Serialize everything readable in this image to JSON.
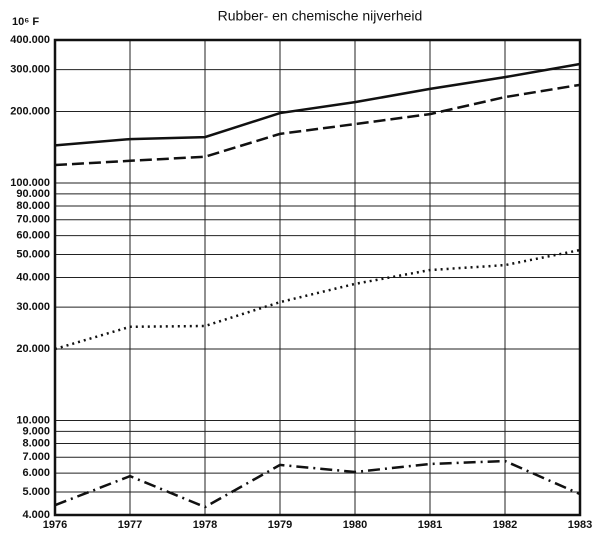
{
  "chart_data": {
    "type": "line",
    "title": "Rubber- en chemische nijverheid",
    "ylabel": "10⁶ F",
    "x": [
      1976,
      1977,
      1978,
      1979,
      1980,
      1981,
      1982,
      1983
    ],
    "xlim": [
      1976,
      1983
    ],
    "xticks": [
      1976,
      1977,
      1978,
      1979,
      1980,
      1981,
      1982,
      1983
    ],
    "log_y": true,
    "grid": true,
    "ylim": [
      4000,
      400000
    ],
    "yticks": [
      {
        "value": 400000,
        "label": "400.000"
      },
      {
        "value": 300000,
        "label": "300.000"
      },
      {
        "value": 200000,
        "label": "200.000"
      },
      {
        "value": 100000,
        "label": "100.000"
      },
      {
        "value": 90000,
        "label": "90.000"
      },
      {
        "value": 80000,
        "label": "80.000"
      },
      {
        "value": 70000,
        "label": "70.000"
      },
      {
        "value": 60000,
        "label": "60.000"
      },
      {
        "value": 50000,
        "label": "50.000"
      },
      {
        "value": 40000,
        "label": "40.000"
      },
      {
        "value": 30000,
        "label": "30.000"
      },
      {
        "value": 20000,
        "label": "20.000"
      },
      {
        "value": 10000,
        "label": "10.000"
      },
      {
        "value": 9000,
        "label": "9.000"
      },
      {
        "value": 8000,
        "label": "8.000"
      },
      {
        "value": 7000,
        "label": "7.000"
      },
      {
        "value": 6000,
        "label": "6.000"
      },
      {
        "value": 5000,
        "label": "5.000"
      },
      {
        "value": 4000,
        "label": "4.000"
      }
    ],
    "series": [
      {
        "color": "#111111",
        "style": "solid",
        "values": [
          144000,
          153000,
          156000,
          197000,
          219000,
          249000,
          279000,
          317000
        ]
      },
      {
        "color": "#111111",
        "style": "dashed",
        "values": [
          119000,
          124000,
          129000,
          161000,
          177000,
          195000,
          230000,
          259000
        ]
      },
      {
        "color": "#111111",
        "style": "dotted",
        "values": [
          20000,
          24800,
          25000,
          31500,
          37600,
          43000,
          45100,
          52200
        ]
      },
      {
        "color": "#111111",
        "style": "dashdot",
        "values": [
          4400,
          5830,
          4320,
          6500,
          6070,
          6560,
          6750,
          4900
        ]
      }
    ]
  }
}
